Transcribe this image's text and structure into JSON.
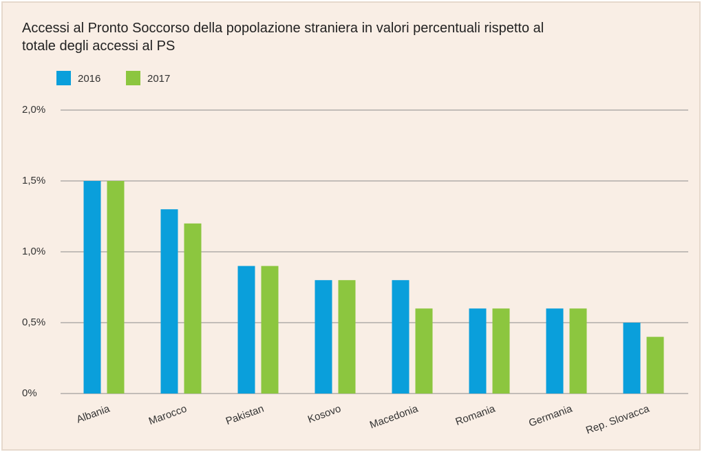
{
  "chart_data": {
    "type": "bar",
    "title": "Accessi al Pronto Soccorso della popolazione straniera in valori percentuali rispetto al totale degli accessi al PS",
    "categories": [
      "Albania",
      "Marocco",
      "Pakistan",
      "Kosovo",
      "Macedonia",
      "Romania",
      "Germania",
      "Rep. Slovacca"
    ],
    "series": [
      {
        "name": "2016",
        "color": "#0a9fdb",
        "values": [
          1.5,
          1.3,
          0.9,
          0.8,
          0.8,
          0.6,
          0.6,
          0.5
        ]
      },
      {
        "name": "2017",
        "color": "#8cc63f",
        "values": [
          1.5,
          1.2,
          0.9,
          0.8,
          0.6,
          0.6,
          0.6,
          0.4
        ]
      }
    ],
    "ylim": [
      0,
      2
    ],
    "yticks": [
      {
        "value": 0,
        "label": "0%"
      },
      {
        "value": 0.5,
        "label": "0,5%"
      },
      {
        "value": 1,
        "label": "1,0%"
      },
      {
        "value": 1.5,
        "label": "1,5%"
      },
      {
        "value": 2,
        "label": "2,0%"
      }
    ],
    "grid": true,
    "legend": "top-left"
  }
}
